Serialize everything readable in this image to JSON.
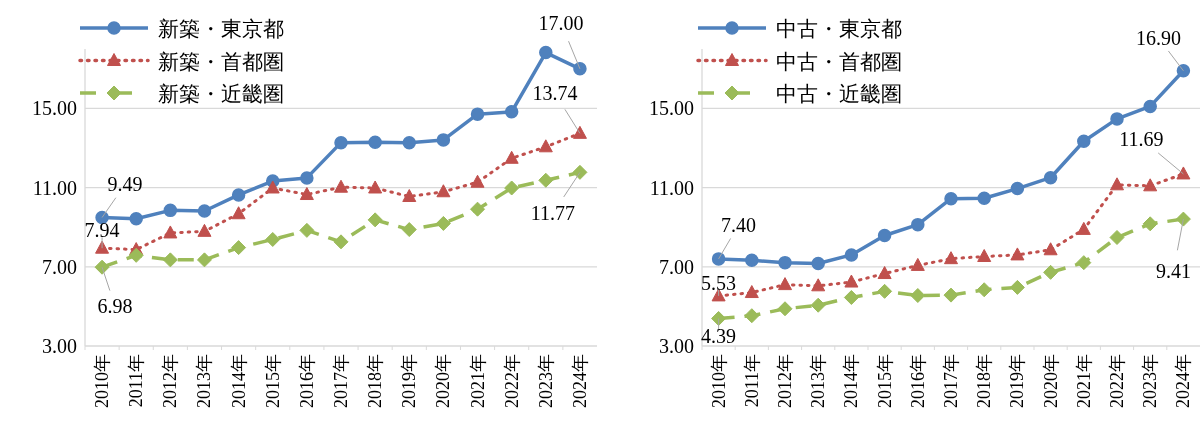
{
  "chart_data": [
    {
      "type": "line",
      "categories": [
        "2010年",
        "2011年",
        "2012年",
        "2013年",
        "2014年",
        "2015年",
        "2016年",
        "2017年",
        "2018年",
        "2019年",
        "2020年",
        "2021年",
        "2022年",
        "2023年",
        "2024年"
      ],
      "series": [
        {
          "name": "新築・東京都",
          "color": "#4f81bd",
          "marker": "circle",
          "line_style": "solid",
          "values": [
            9.49,
            9.43,
            9.85,
            9.82,
            10.63,
            11.33,
            11.49,
            13.27,
            13.29,
            13.27,
            13.41,
            14.71,
            14.83,
            17.82,
            17.0
          ],
          "value_labels": [
            "9.49",
            null,
            null,
            null,
            null,
            null,
            null,
            null,
            null,
            null,
            null,
            null,
            null,
            null,
            "17.00"
          ]
        },
        {
          "name": "新築・首都圏",
          "color": "#c0504d",
          "marker": "triangle",
          "line_style": "dotted",
          "values": [
            7.94,
            7.87,
            8.71,
            8.79,
            9.68,
            10.98,
            10.65,
            11.02,
            10.98,
            10.55,
            10.79,
            11.27,
            12.48,
            13.06,
            13.74
          ],
          "value_labels": [
            "7.94",
            null,
            null,
            null,
            null,
            null,
            null,
            null,
            null,
            null,
            null,
            null,
            null,
            null,
            "13.74"
          ]
        },
        {
          "name": "新築・近畿圏",
          "color": "#9bbb59",
          "marker": "diamond",
          "line_style": "dashed",
          "values": [
            6.98,
            7.58,
            7.35,
            7.35,
            7.97,
            8.38,
            8.84,
            8.26,
            9.37,
            8.88,
            9.19,
            9.91,
            10.98,
            11.37,
            11.77
          ],
          "value_labels": [
            "6.98",
            null,
            null,
            null,
            null,
            null,
            null,
            null,
            null,
            null,
            null,
            null,
            null,
            null,
            "11.77"
          ]
        }
      ],
      "ylim": [
        3,
        18
      ],
      "yticks": [
        {
          "value": 3,
          "label": "3.00"
        },
        {
          "value": 7,
          "label": "7.00"
        },
        {
          "value": 11,
          "label": "11.00"
        },
        {
          "value": 15,
          "label": "15.00"
        }
      ],
      "grid": "y",
      "legend": "top left"
    },
    {
      "type": "line",
      "categories": [
        "2010年",
        "2011年",
        "2012年",
        "2013年",
        "2014年",
        "2015年",
        "2016年",
        "2017年",
        "2018年",
        "2019年",
        "2020年",
        "2021年",
        "2022年",
        "2023年",
        "2024年"
      ],
      "series": [
        {
          "name": "中古・東京都",
          "color": "#4f81bd",
          "marker": "circle",
          "line_style": "solid",
          "values": [
            7.4,
            7.33,
            7.21,
            7.17,
            7.6,
            8.58,
            9.13,
            10.44,
            10.46,
            10.95,
            11.5,
            13.34,
            14.47,
            15.1,
            16.9
          ],
          "value_labels": [
            "7.40",
            null,
            null,
            null,
            null,
            null,
            null,
            null,
            null,
            null,
            null,
            null,
            null,
            null,
            "16.90"
          ]
        },
        {
          "name": "中古・首都圏",
          "color": "#c0504d",
          "marker": "triangle",
          "line_style": "dotted",
          "values": [
            5.53,
            5.7,
            6.1,
            6.04,
            6.23,
            6.66,
            7.07,
            7.41,
            7.52,
            7.6,
            7.86,
            8.89,
            11.14,
            11.09,
            11.69
          ],
          "value_labels": [
            "5.53",
            null,
            null,
            null,
            null,
            null,
            null,
            null,
            null,
            null,
            null,
            null,
            null,
            null,
            "11.69"
          ]
        },
        {
          "name": "中古・近畿圏",
          "color": "#9bbb59",
          "marker": "diamond",
          "line_style": "dashed",
          "values": [
            4.39,
            4.53,
            4.88,
            5.06,
            5.45,
            5.76,
            5.55,
            5.57,
            5.84,
            5.96,
            6.72,
            7.21,
            8.48,
            9.17,
            9.41
          ],
          "value_labels": [
            "4.39",
            null,
            null,
            null,
            null,
            null,
            null,
            null,
            null,
            null,
            null,
            null,
            null,
            null,
            "9.41"
          ]
        }
      ],
      "ylim": [
        3,
        18
      ],
      "yticks": [
        {
          "value": 3,
          "label": "3.00"
        },
        {
          "value": 7,
          "label": "7.00"
        },
        {
          "value": 11,
          "label": "11.00"
        },
        {
          "value": 15,
          "label": "15.00"
        }
      ],
      "grid": "y",
      "legend": "top left"
    }
  ]
}
